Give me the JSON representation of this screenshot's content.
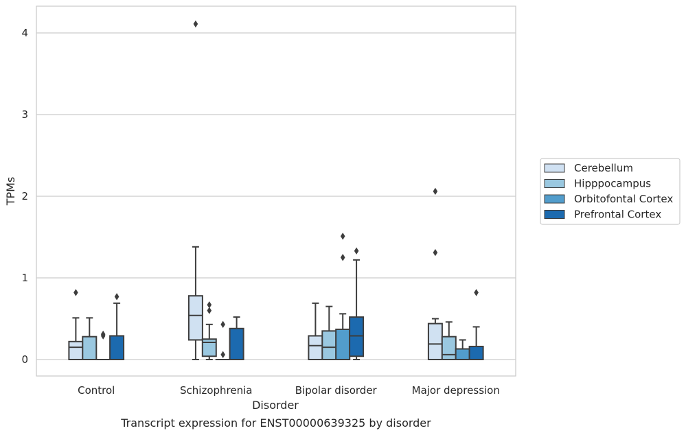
{
  "chart_data": {
    "type": "box",
    "title": "",
    "caption": "Transcript expression for ENST00000639325 by disorder",
    "xlabel": "Disorder",
    "ylabel": "TPMs",
    "ylim": [
      -0.2,
      4.32
    ],
    "yticks": [
      0,
      1,
      2,
      3,
      4
    ],
    "grid": "horizontal",
    "legend_position": "right",
    "categories": [
      "Control",
      "Schizophrenia",
      "Bipolar disorder",
      "Major depression"
    ],
    "series": [
      {
        "name": "Cerebellum",
        "color": "#d0e1f2",
        "boxes": [
          {
            "q1": 0.0,
            "median": 0.15,
            "q3": 0.22,
            "whisker_low": 0.0,
            "whisker_high": 0.51,
            "outliers": [
              0.82
            ]
          },
          {
            "q1": 0.24,
            "median": 0.54,
            "q3": 0.78,
            "whisker_low": 0.0,
            "whisker_high": 1.38,
            "outliers": [
              4.11
            ]
          },
          {
            "q1": 0.0,
            "median": 0.17,
            "q3": 0.29,
            "whisker_low": 0.0,
            "whisker_high": 0.69,
            "outliers": []
          },
          {
            "q1": 0.0,
            "median": 0.19,
            "q3": 0.44,
            "whisker_low": 0.0,
            "whisker_high": 0.5,
            "outliers": [
              1.31,
              2.06
            ]
          }
        ]
      },
      {
        "name": "Hipppocampus",
        "color": "#9ac8e0",
        "boxes": [
          {
            "q1": 0.0,
            "median": 0.0,
            "q3": 0.28,
            "whisker_low": 0.0,
            "whisker_high": 0.51,
            "outliers": []
          },
          {
            "q1": 0.04,
            "median": 0.21,
            "q3": 0.25,
            "whisker_low": 0.0,
            "whisker_high": 0.43,
            "outliers": [
              0.6,
              0.67
            ]
          },
          {
            "q1": 0.0,
            "median": 0.15,
            "q3": 0.35,
            "whisker_low": 0.0,
            "whisker_high": 0.65,
            "outliers": []
          },
          {
            "q1": 0.0,
            "median": 0.06,
            "q3": 0.28,
            "whisker_low": 0.0,
            "whisker_high": 0.46,
            "outliers": []
          }
        ]
      },
      {
        "name": "Orbitofontal Cortex",
        "color": "#529dcc",
        "boxes": [
          {
            "q1": 0.0,
            "median": 0.0,
            "q3": 0.0,
            "whisker_low": 0.0,
            "whisker_high": 0.0,
            "outliers": [
              0.29,
              0.31
            ]
          },
          {
            "q1": 0.0,
            "median": 0.0,
            "q3": 0.0,
            "whisker_low": 0.0,
            "whisker_high": 0.0,
            "outliers": [
              0.06,
              0.43
            ]
          },
          {
            "q1": 0.0,
            "median": 0.0,
            "q3": 0.37,
            "whisker_low": 0.0,
            "whisker_high": 0.56,
            "outliers": [
              1.25,
              1.51
            ]
          },
          {
            "q1": 0.0,
            "median": 0.0,
            "q3": 0.13,
            "whisker_low": 0.0,
            "whisker_high": 0.24,
            "outliers": []
          }
        ]
      },
      {
        "name": "Prefrontal Cortex",
        "color": "#1c6aaf",
        "boxes": [
          {
            "q1": 0.0,
            "median": 0.0,
            "q3": 0.29,
            "whisker_low": 0.0,
            "whisker_high": 0.69,
            "outliers": [
              0.77
            ]
          },
          {
            "q1": 0.0,
            "median": 0.0,
            "q3": 0.38,
            "whisker_low": 0.0,
            "whisker_high": 0.52,
            "outliers": []
          },
          {
            "q1": 0.04,
            "median": 0.29,
            "q3": 0.52,
            "whisker_low": 0.0,
            "whisker_high": 1.22,
            "outliers": [
              1.33
            ]
          },
          {
            "q1": 0.0,
            "median": 0.0,
            "q3": 0.16,
            "whisker_low": 0.0,
            "whisker_high": 0.4,
            "outliers": [
              0.82
            ]
          }
        ]
      }
    ]
  }
}
